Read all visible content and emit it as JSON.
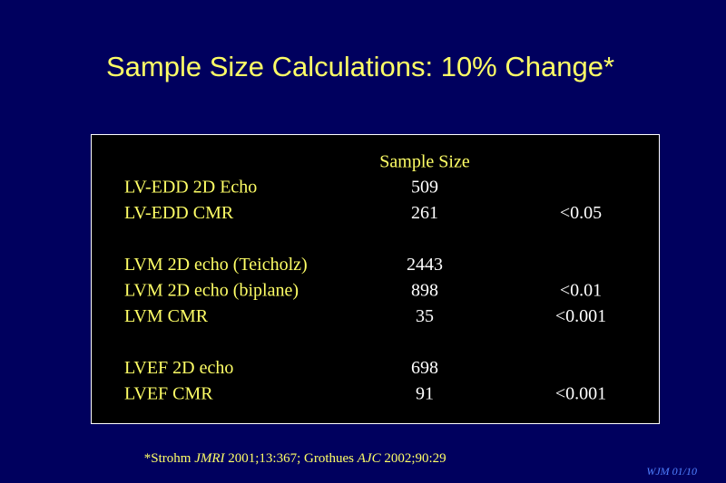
{
  "title": "Sample Size Calculations: 10% Change*",
  "table": {
    "header": "Sample Size",
    "groups": [
      {
        "rows": [
          {
            "label": "LV-EDD 2D Echo",
            "size": 509
          },
          {
            "label": "LV-EDD CMR",
            "size": 261,
            "p": "<0.05"
          }
        ]
      },
      {
        "rows": [
          {
            "label": "LVM 2D echo (Teicholz)",
            "size": 2443
          },
          {
            "label": "LVM 2D echo (biplane)",
            "size": 898,
            "p": "<0.01"
          },
          {
            "label": "LVM CMR",
            "size": 35,
            "p": "<0.001"
          }
        ]
      },
      {
        "rows": [
          {
            "label": "LVEF 2D echo",
            "size": 698
          },
          {
            "label": "LVEF CMR",
            "size": 91,
            "p": "<0.001"
          }
        ]
      }
    ]
  },
  "footnote": {
    "parts": [
      "*Strohm ",
      "JMRI",
      " 2001;13:367; Grothues ",
      "AJC",
      " 2002;90:29"
    ]
  },
  "corner": "WJM 01/10"
}
